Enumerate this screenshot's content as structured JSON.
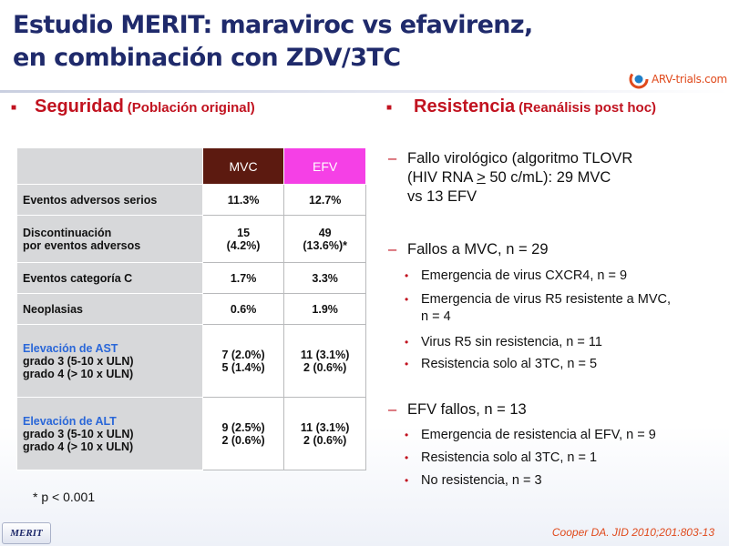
{
  "title": {
    "line1": "Estudio MERIT: maraviroc vs efavirenz,",
    "line2": "en combinación con ZDV/3TC"
  },
  "logo": {
    "text": "ARV-trials.com",
    "colors": {
      "orange": "#e04a1c",
      "blue": "#1f7fc8"
    }
  },
  "left_section": {
    "heading": "Seguridad",
    "subheading": "(Población original)"
  },
  "right_section": {
    "heading": "Resistencia",
    "subheading": "(Reanálisis post hoc)"
  },
  "table": {
    "columns": [
      "MVC",
      "EFV"
    ],
    "rows": [
      {
        "label1": "Eventos adversos serios",
        "mvc1": "11.3%",
        "efv1": "12.7%"
      },
      {
        "label1": "Discontinuación",
        "label2": "por eventos adversos",
        "mvc1": "15",
        "mvc2": "(4.2%)",
        "efv1": "49",
        "efv2": "(13.6%)*"
      },
      {
        "label1": "Eventos categoría C",
        "mvc1": "1.7%",
        "efv1": "3.3%"
      },
      {
        "label1": "Neoplasias",
        "mvc1": "0.6%",
        "efv1": "1.9%"
      },
      {
        "label_pre": "Elevación de ",
        "label_hl": "AST",
        "label2": "grado 3 (5-10 x ULN)",
        "label3": "grado 4 (> 10 x ULN)",
        "mvc1": "7 (2.0%)",
        "mvc2": "5 (1.4%)",
        "efv1": "11 (3.1%)",
        "efv2": "2 (0.6%)"
      },
      {
        "label_pre": "Elevación de ",
        "label_hl": "ALT",
        "label2": "grado 3 (5-10 x ULN)",
        "label3": "grado 4 (> 10 x ULN)",
        "mvc1": "9 (2.5%)",
        "mvc2": "2 (0.6%)",
        "efv1": "11 (3.1%)",
        "efv2": "2 (0.6%)"
      }
    ],
    "colors": {
      "mvc": "#5c1a10",
      "efv": "#f540e6",
      "label_bg": "#d7d8da",
      "highlight": "#2a67d8"
    }
  },
  "footnote": "* p < 0.001",
  "resistance": {
    "item1": {
      "line1": "Fallo virológico (algoritmo TLOVR",
      "line2_pre": "(HIV RNA ",
      "line2_ge": ">",
      "line2_post": " 50 c/mL): 29 MVC",
      "line3": "vs 13 EFV"
    },
    "item2": {
      "text": "Fallos a MVC, n = 29",
      "subs": [
        "Emergencia de virus CXCR4, n = 9",
        "Emergencia de virus R5 resistente a MVC,",
        "n = 4",
        "Virus R5 sin resistencia, n = 11",
        "Resistencia solo al 3TC, n = 5"
      ]
    },
    "item3": {
      "text": "EFV fallos, n = 13",
      "subs": [
        "Emergencia de resistencia al EFV, n = 9",
        "Resistencia solo al 3TC, n = 1",
        "No resistencia, n = 3"
      ]
    }
  },
  "badge": "MERIT",
  "citation": "Cooper DA. JID 2010;201:803-13"
}
